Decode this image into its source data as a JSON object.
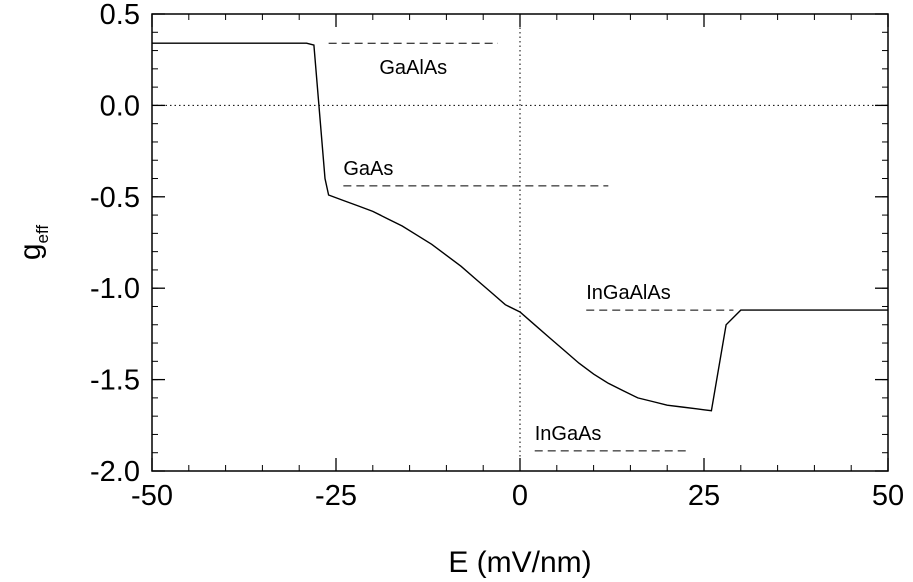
{
  "chart_data": {
    "type": "line",
    "xlabel": "E (mV/nm)",
    "ylabel": {
      "main": "g",
      "sub": "eff"
    },
    "xlim": [
      -50,
      50
    ],
    "ylim": [
      -2.0,
      0.5
    ],
    "x_ticks": [
      -50,
      -25,
      0,
      25,
      50
    ],
    "x_tick_labels": [
      "-50",
      "-25",
      "0",
      "25",
      "50"
    ],
    "y_ticks": [
      0.5,
      0.0,
      -0.5,
      -1.0,
      -1.5,
      -2.0
    ],
    "y_tick_labels": [
      "0.5",
      "0.0",
      "-0.5",
      "-1.0",
      "-1.5",
      "-2.0"
    ],
    "x_minor_step": 5,
    "y_minor_step": 0.1,
    "grid": false,
    "reference_lines": [
      {
        "orientation": "horizontal",
        "value": 0.0,
        "style": "dotted"
      },
      {
        "orientation": "vertical",
        "value": 0,
        "style": "dotted"
      }
    ],
    "series": [
      {
        "x": [
          -50,
          -29,
          -28,
          -26.5,
          -26,
          -24,
          -22,
          -20,
          -18,
          -16,
          -14,
          -12,
          -10,
          -8,
          -6,
          -4,
          -2,
          0,
          2,
          4,
          6,
          8,
          10,
          12,
          14,
          16,
          18,
          20,
          22,
          24,
          25,
          26,
          28,
          30,
          50
        ],
        "y": [
          0.34,
          0.34,
          0.33,
          -0.4,
          -0.49,
          -0.52,
          -0.55,
          -0.58,
          -0.62,
          -0.66,
          -0.71,
          -0.76,
          -0.82,
          -0.88,
          -0.95,
          -1.02,
          -1.09,
          -1.13,
          -1.2,
          -1.27,
          -1.34,
          -1.41,
          -1.47,
          -1.52,
          -1.56,
          -1.6,
          -1.62,
          -1.64,
          -1.65,
          -1.66,
          -1.665,
          -1.67,
          -1.2,
          -1.12,
          -1.12
        ]
      }
    ],
    "annotations": [
      {
        "text": "GaAlAs",
        "x1": -26,
        "x2": -3,
        "y": 0.34
      },
      {
        "text": "GaAs",
        "x1": -24,
        "x2": 12,
        "y": -0.44
      },
      {
        "text": "InGaAlAs",
        "x1": 9,
        "x2": 29,
        "y": -1.12
      },
      {
        "text": "InGaAs",
        "x1": 2,
        "x2": 23,
        "y": -1.89
      }
    ]
  }
}
